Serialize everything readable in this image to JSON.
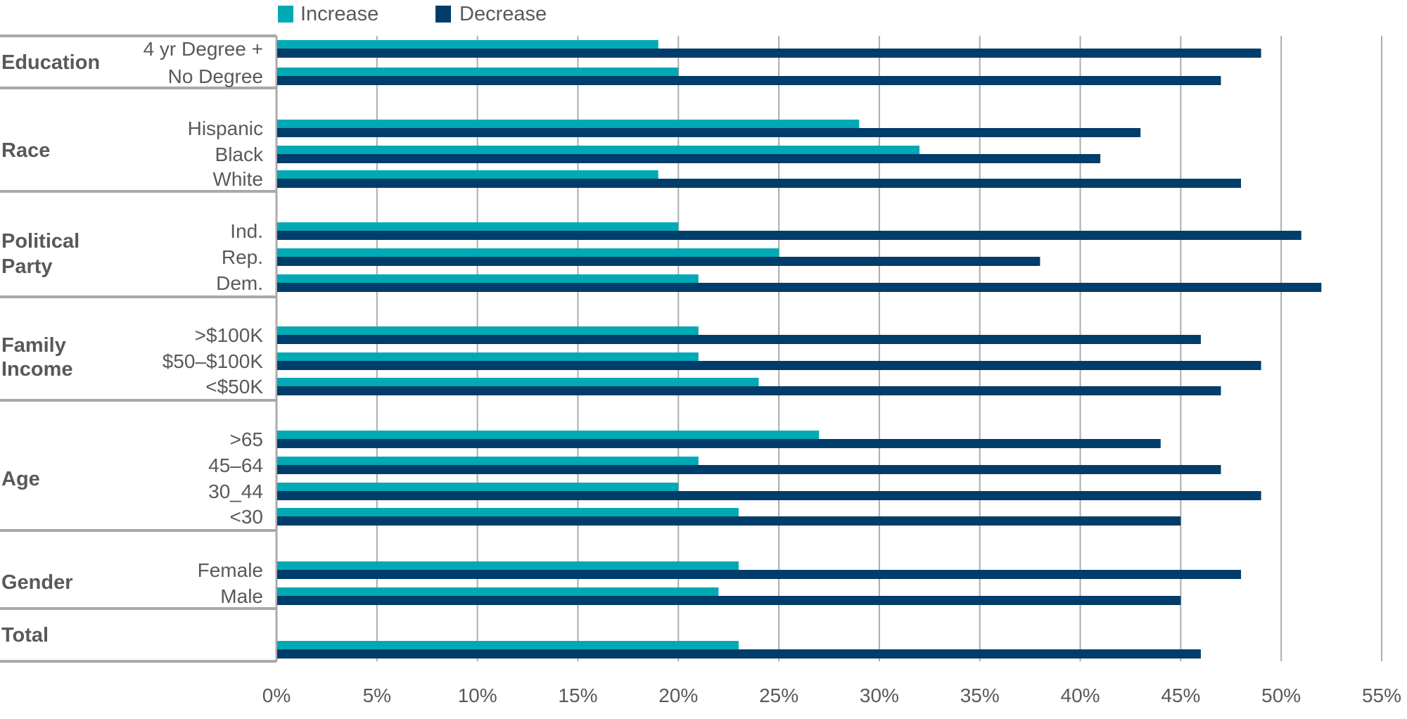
{
  "chart_data": {
    "type": "bar",
    "orientation": "horizontal",
    "xlim": [
      0,
      55
    ],
    "x_ticks": [
      "0%",
      "5%",
      "10%",
      "15%",
      "20%",
      "25%",
      "30%",
      "35%",
      "40%",
      "45%",
      "50%",
      "55%"
    ],
    "grid": "vertical",
    "legend_placement": "top",
    "legend": [
      "Increase",
      "Decrease"
    ],
    "colors": {
      "Increase": "#00A9B4",
      "Decrease": "#003D6A"
    },
    "groups": [
      {
        "label": "Education",
        "categories": [
          "4 yr Degree +",
          "No Degree"
        ],
        "increase": [
          19,
          20
        ],
        "decrease": [
          49,
          47
        ]
      },
      {
        "label": "Race",
        "categories": [
          "Hispanic",
          "Black",
          "White"
        ],
        "increase": [
          29,
          32,
          19
        ],
        "decrease": [
          43,
          41,
          48
        ]
      },
      {
        "label": "Political Party",
        "categories": [
          "Ind.",
          "Rep.",
          "Dem."
        ],
        "increase": [
          20,
          25,
          21
        ],
        "decrease": [
          51,
          38,
          52
        ]
      },
      {
        "label": "Family Income",
        "categories": [
          ">$100K",
          "$50–$100K",
          "<$50K"
        ],
        "increase": [
          21,
          21,
          24
        ],
        "decrease": [
          46,
          49,
          47
        ]
      },
      {
        "label": "Age",
        "categories": [
          ">65",
          "45–64",
          "30_44",
          "<30"
        ],
        "increase": [
          27,
          21,
          20,
          23
        ],
        "decrease": [
          44,
          47,
          49,
          45
        ]
      },
      {
        "label": "Gender",
        "categories": [
          "Female",
          "Male"
        ],
        "increase": [
          23,
          22
        ],
        "decrease": [
          48,
          45
        ]
      },
      {
        "label": "Total",
        "categories": [
          ""
        ],
        "increase": [
          23
        ],
        "decrease": [
          46
        ]
      }
    ]
  }
}
